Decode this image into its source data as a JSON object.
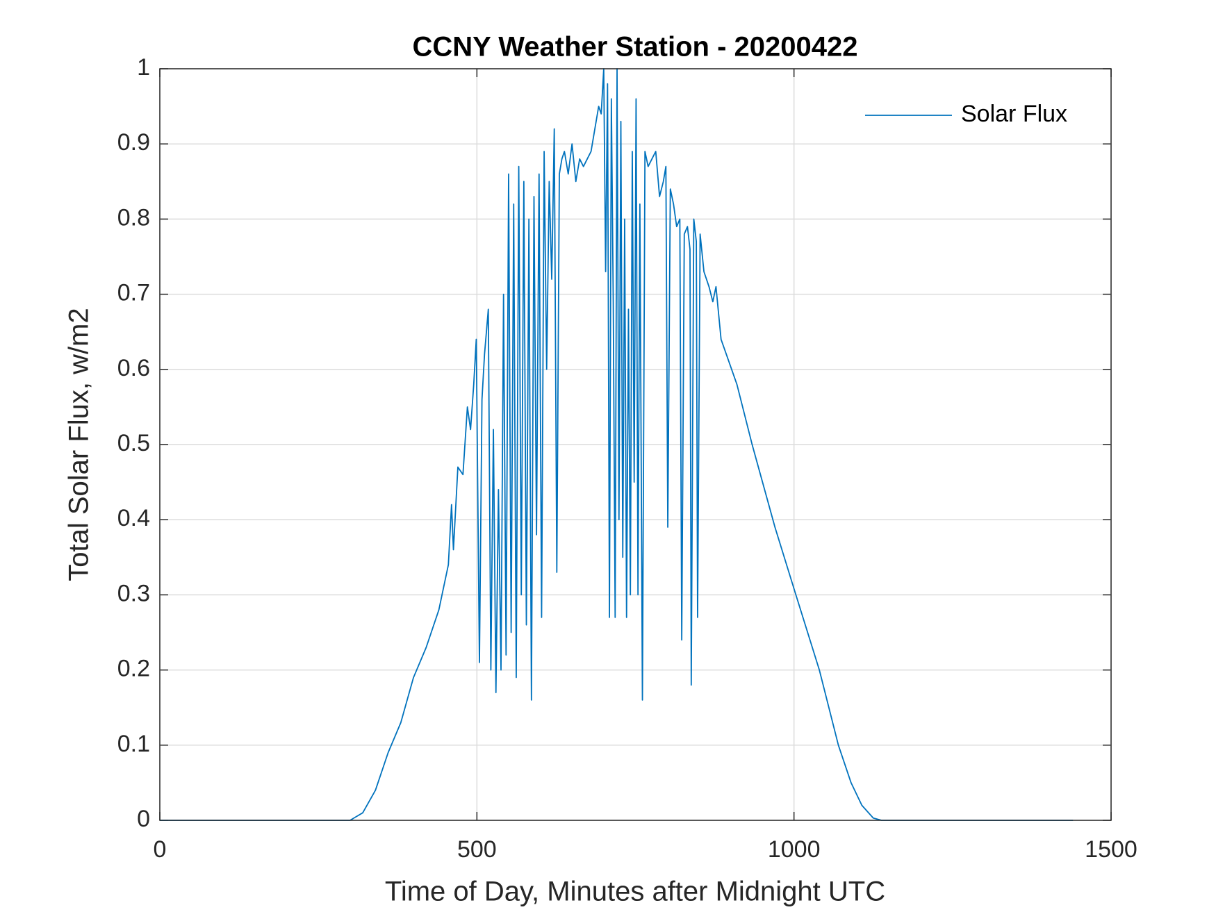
{
  "chart_data": {
    "type": "line",
    "title": "CCNY Weather Station - 20200422",
    "x_label": "Time of Day, Minutes after Midnight UTC",
    "y_label": "Total Solar Flux, w/m2",
    "xlim": [
      0,
      1500
    ],
    "ylim": [
      0,
      1
    ],
    "xticks": [
      0,
      500,
      1000,
      1500
    ],
    "yticks": [
      0,
      0.1,
      0.2,
      0.3,
      0.4,
      0.5,
      0.6,
      0.7,
      0.8,
      0.9,
      1
    ],
    "grid": true,
    "legend": "upper right",
    "x": [
      0,
      300,
      320,
      340,
      360,
      380,
      400,
      420,
      440,
      455,
      460,
      463,
      470,
      478,
      485,
      490,
      495,
      499,
      504,
      508,
      512,
      518,
      522,
      526,
      530,
      534,
      538,
      542,
      546,
      550,
      554,
      558,
      562,
      566,
      570,
      574,
      578,
      582,
      586,
      590,
      594,
      598,
      602,
      606,
      610,
      614,
      618,
      622,
      626,
      630,
      634,
      638,
      644,
      650,
      656,
      662,
      668,
      674,
      680,
      686,
      692,
      696,
      700,
      703,
      706,
      709,
      712,
      715,
      718,
      721,
      724,
      727,
      730,
      733,
      736,
      739,
      742,
      745,
      748,
      751,
      754,
      757,
      761,
      765,
      770,
      776,
      782,
      788,
      794,
      798,
      801,
      805,
      810,
      815,
      820,
      823,
      827,
      832,
      836,
      838,
      842,
      846,
      848,
      852,
      858,
      866,
      872,
      877,
      885,
      910,
      934,
      970,
      1003,
      1040,
      1070,
      1090,
      1107,
      1125,
      1138,
      1200,
      1300,
      1440
    ],
    "series": [
      {
        "name": "Solar Flux",
        "color": "#0072bd",
        "values": [
          0,
          0,
          0.01,
          0.04,
          0.09,
          0.13,
          0.19,
          0.23,
          0.28,
          0.34,
          0.42,
          0.36,
          0.47,
          0.46,
          0.55,
          0.52,
          0.58,
          0.64,
          0.21,
          0.56,
          0.62,
          0.68,
          0.2,
          0.52,
          0.17,
          0.44,
          0.2,
          0.7,
          0.22,
          0.86,
          0.25,
          0.82,
          0.19,
          0.87,
          0.3,
          0.85,
          0.26,
          0.8,
          0.16,
          0.83,
          0.38,
          0.86,
          0.27,
          0.89,
          0.6,
          0.85,
          0.72,
          0.92,
          0.33,
          0.86,
          0.88,
          0.89,
          0.86,
          0.9,
          0.85,
          0.88,
          0.87,
          0.88,
          0.89,
          0.92,
          0.95,
          0.94,
          1.0,
          0.73,
          0.98,
          0.27,
          0.96,
          0.69,
          0.27,
          1.0,
          0.4,
          0.93,
          0.35,
          0.8,
          0.27,
          0.68,
          0.3,
          0.89,
          0.45,
          0.96,
          0.3,
          0.82,
          0.16,
          0.89,
          0.87,
          0.88,
          0.89,
          0.83,
          0.85,
          0.87,
          0.39,
          0.84,
          0.82,
          0.79,
          0.8,
          0.24,
          0.78,
          0.79,
          0.76,
          0.18,
          0.8,
          0.77,
          0.27,
          0.78,
          0.73,
          0.71,
          0.69,
          0.71,
          0.64,
          0.58,
          0.5,
          0.39,
          0.3,
          0.2,
          0.1,
          0.05,
          0.02,
          0.003,
          0,
          0,
          0,
          0
        ]
      }
    ]
  }
}
